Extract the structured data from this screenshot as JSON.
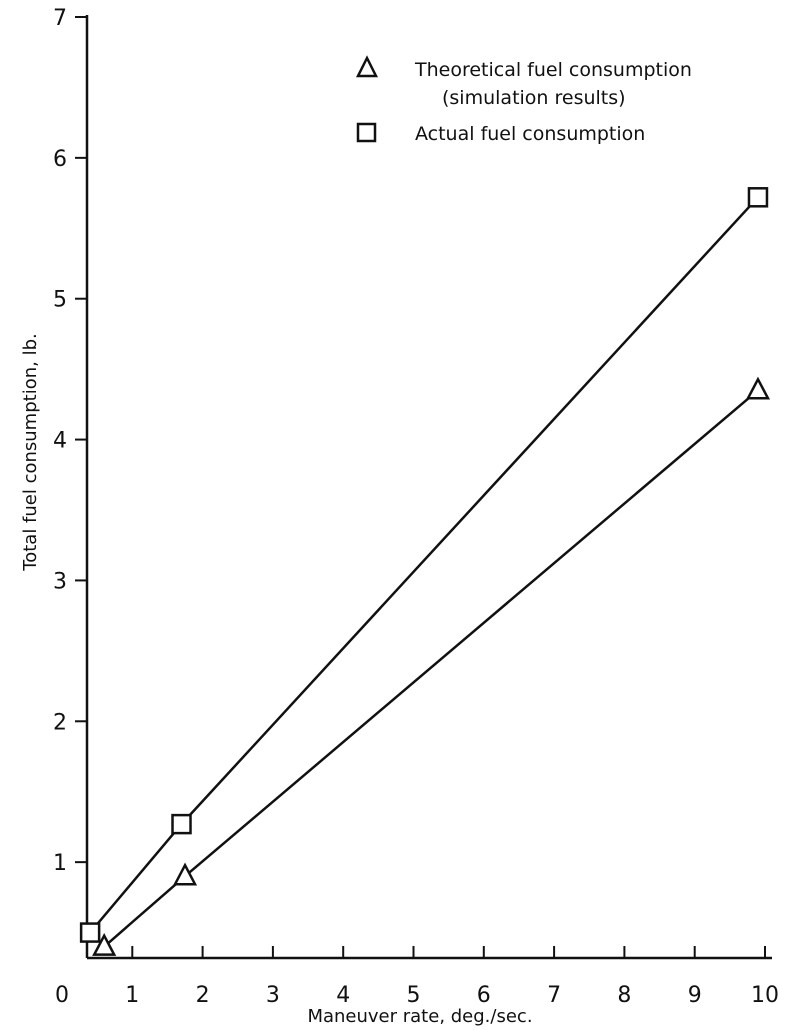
{
  "chart_data": {
    "type": "line",
    "xlabel": "Maneuver rate, deg./sec.",
    "ylabel": "Total fuel consumption, lb.",
    "xlim": [
      0,
      10
    ],
    "ylim": [
      0,
      7
    ],
    "x_ticks": [
      "0",
      "1",
      "2",
      "3",
      "4",
      "5",
      "6",
      "7",
      "8",
      "9",
      "10"
    ],
    "y_ticks": [
      "1",
      "2",
      "3",
      "4",
      "5",
      "6",
      "7"
    ],
    "grid": false,
    "legend_position": "top-right",
    "series": [
      {
        "name_lines": [
          "Theoretical fuel consumption",
          "(simulation results)"
        ],
        "marker": "triangle",
        "x": [
          0.6,
          1.75,
          9.9
        ],
        "y": [
          0.4,
          0.9,
          4.35
        ]
      },
      {
        "name": "Actual fuel consumption",
        "marker": "square",
        "x": [
          0.4,
          1.7,
          9.9
        ],
        "y": [
          0.5,
          1.27,
          5.72
        ]
      }
    ]
  }
}
